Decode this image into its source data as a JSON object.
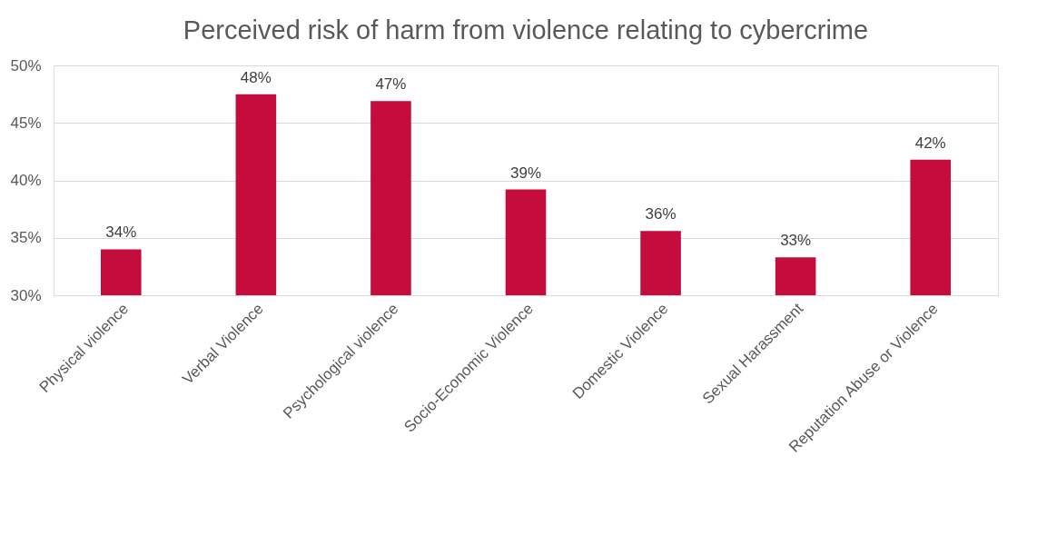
{
  "chart_data": {
    "type": "bar",
    "title": "Perceived risk of harm from violence relating to cybercrime",
    "categories": [
      "Physical violence",
      "Verbal Violence",
      "Psychological violence",
      "Socio-Economic Violence",
      "Domestic Violence",
      "Sexual Harassment",
      "Reputation Abuse or Violence"
    ],
    "values": [
      34.0,
      47.5,
      46.9,
      39.2,
      35.6,
      33.3,
      41.8
    ],
    "value_labels": [
      "34%",
      "48%",
      "47%",
      "39%",
      "36%",
      "33%",
      "42%"
    ],
    "color": "#c40d3c",
    "ylim": [
      30,
      50
    ],
    "yticks": [
      {
        "value": 30,
        "label": "30%"
      },
      {
        "value": 35,
        "label": "35%"
      },
      {
        "value": 40,
        "label": "40%"
      },
      {
        "value": 45,
        "label": "45%"
      },
      {
        "value": 50,
        "label": "50%"
      }
    ],
    "grid": "y"
  }
}
